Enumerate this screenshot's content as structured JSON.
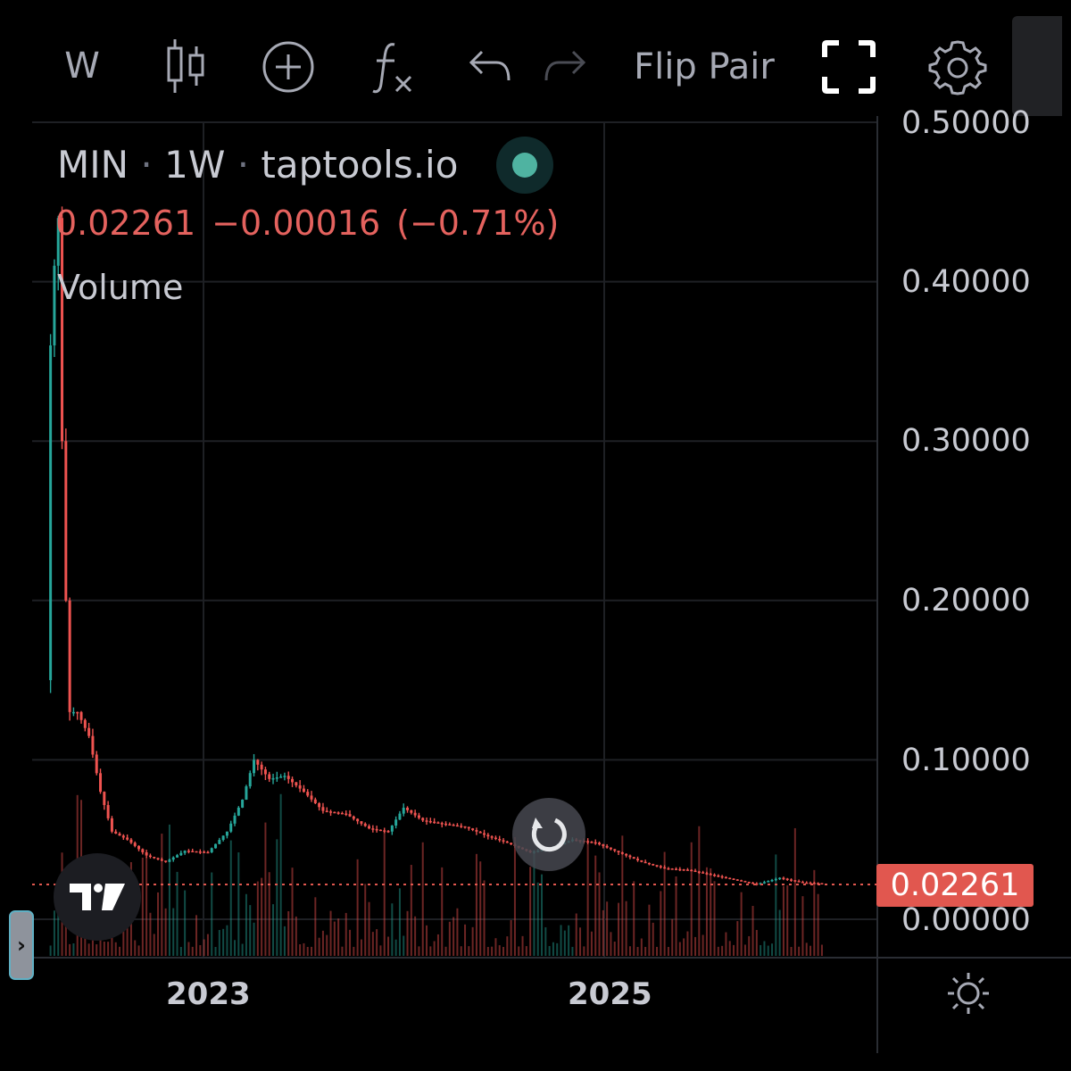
{
  "toolbar": {
    "interval_label": "W",
    "chart_type_icon": "candles-icon",
    "add_icon": "plus-circle-icon",
    "indicators_icon": "function-icon",
    "undo_icon": "undo-icon",
    "redo_icon": "redo-icon",
    "flip_pair_label": "Flip Pair",
    "fullscreen_icon": "fullscreen-icon",
    "settings_icon": "gear-icon",
    "snapshot_icon": "camera-icon"
  },
  "legend": {
    "symbol": "MIN",
    "interval": "1W",
    "source": "taptools.io",
    "price": "0.02261",
    "change": "−0.00016",
    "change_pct": "(−0.71%)",
    "volume_label": "Volume"
  },
  "price_axis": {
    "ticks": [
      "0.50000",
      "0.40000",
      "0.30000",
      "0.20000",
      "0.10000",
      "0.00000"
    ],
    "last_price_label": "0.02261"
  },
  "time_axis": {
    "ticks": [
      "2023",
      "2025"
    ],
    "settings_icon": "sun-gear-icon"
  },
  "colors": {
    "up": "#26a69a",
    "down": "#ef5350",
    "background": "#000000",
    "grid": "#1e2024",
    "last_price": "#e1574f"
  },
  "chart_data": {
    "type": "candlestick",
    "title": "MIN · 1W · taptools.io",
    "ylim": [
      0,
      0.5
    ],
    "x_ticks": [
      "2023",
      "2023-01-01",
      "2025",
      "2025-01-01"
    ],
    "last_price": 0.02261,
    "grid": true,
    "price_path": [
      [
        "2022-03-28",
        0.15
      ],
      [
        "2022-04-04",
        0.36
      ],
      [
        "2022-04-11",
        0.41
      ],
      [
        "2022-04-18",
        0.44
      ],
      [
        "2022-04-25",
        0.3
      ],
      [
        "2022-05-02",
        0.2
      ],
      [
        "2022-05-09",
        0.13
      ],
      [
        "2022-05-23",
        0.13
      ],
      [
        "2022-06-13",
        0.115
      ],
      [
        "2022-07-04",
        0.08
      ],
      [
        "2022-07-25",
        0.055
      ],
      [
        "2022-08-22",
        0.05
      ],
      [
        "2022-09-26",
        0.04
      ],
      [
        "2022-10-31",
        0.036
      ],
      [
        "2022-12-05",
        0.043
      ],
      [
        "2023-01-16",
        0.042
      ],
      [
        "2023-02-20",
        0.055
      ],
      [
        "2023-03-20",
        0.075
      ],
      [
        "2023-04-10",
        0.1
      ],
      [
        "2023-05-08",
        0.088
      ],
      [
        "2023-06-05",
        0.09
      ],
      [
        "2023-07-10",
        0.08
      ],
      [
        "2023-08-14",
        0.068
      ],
      [
        "2023-09-25",
        0.066
      ],
      [
        "2023-11-06",
        0.057
      ],
      [
        "2023-12-11",
        0.055
      ],
      [
        "2024-01-08",
        0.07
      ],
      [
        "2024-02-12",
        0.062
      ],
      [
        "2024-03-18",
        0.06
      ],
      [
        "2024-04-29",
        0.058
      ],
      [
        "2024-06-10",
        0.052
      ],
      [
        "2024-07-15",
        0.048
      ],
      [
        "2024-08-26",
        0.042
      ],
      [
        "2024-10-07",
        0.045
      ],
      [
        "2024-11-11",
        0.05
      ],
      [
        "2024-12-23",
        0.048
      ],
      [
        "2025-02-03",
        0.042
      ],
      [
        "2025-03-17",
        0.036
      ],
      [
        "2025-04-28",
        0.032
      ],
      [
        "2025-06-09",
        0.031
      ],
      [
        "2025-07-21",
        0.028
      ],
      [
        "2025-09-01",
        0.025
      ],
      [
        "2025-10-13",
        0.022
      ],
      [
        "2025-11-24",
        0.026
      ],
      [
        "2026-01-05",
        0.023
      ],
      [
        "2026-02-09",
        0.02261
      ]
    ],
    "series": [
      {
        "name": "Volume",
        "type": "bar"
      }
    ]
  }
}
